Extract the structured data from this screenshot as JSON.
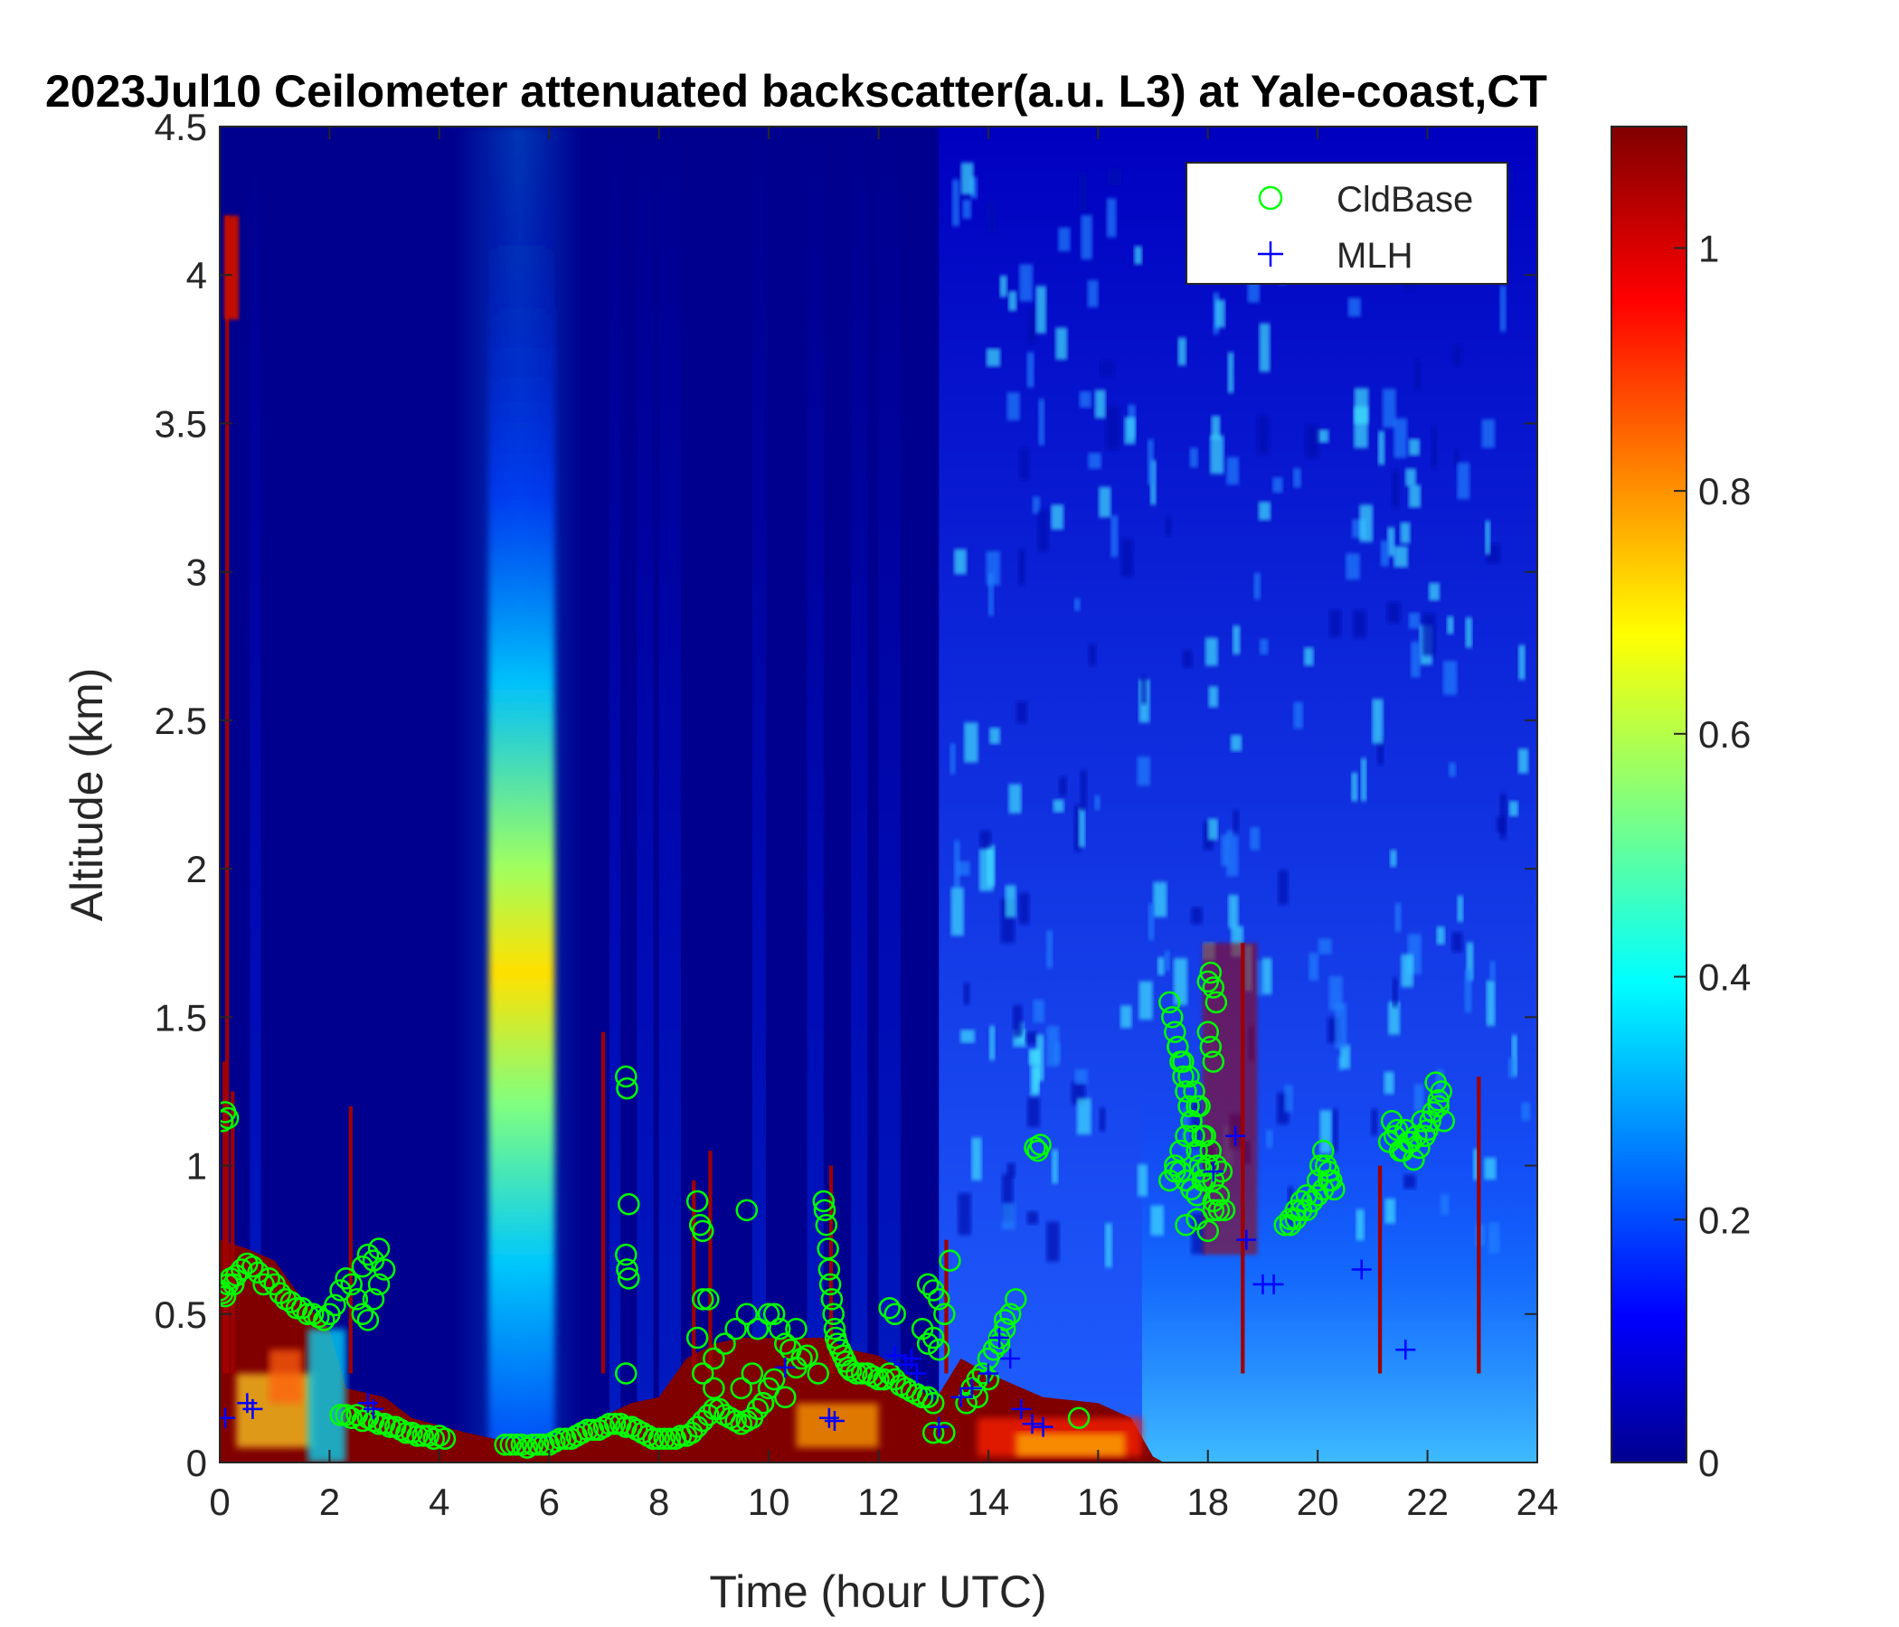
{
  "chart_data": {
    "type": "heatmap",
    "title": "2023Jul10 Ceilometer attenuated backscatter(a.u. L3) at Yale-coast,CT",
    "xlabel": "Time (hour UTC)",
    "ylabel": "Altitude (km)",
    "xlim": [
      0,
      24
    ],
    "ylim": [
      0,
      4.5
    ],
    "x_ticks": [
      0,
      2,
      4,
      6,
      8,
      10,
      12,
      14,
      16,
      18,
      20,
      22,
      24
    ],
    "x_tick_labels": [
      "0",
      "2",
      "4",
      "6",
      "8",
      "10",
      "12",
      "14",
      "16",
      "18",
      "20",
      "22",
      "24"
    ],
    "y_ticks": [
      0,
      0.5,
      1,
      1.5,
      2,
      2.5,
      3,
      3.5,
      4,
      4.5
    ],
    "y_tick_labels": [
      "0",
      "0.5",
      "1",
      "1.5",
      "2",
      "2.5",
      "3",
      "3.5",
      "4",
      "4.5"
    ],
    "colorbar": {
      "colormap": "jet",
      "clim": [
        0,
        1.1
      ],
      "ticks": [
        0,
        0.2,
        0.4,
        0.6,
        0.8,
        1
      ],
      "tick_labels": [
        "0",
        "0.2",
        "0.4",
        "0.6",
        "0.8",
        "1"
      ]
    },
    "legend": {
      "placement": "top-right",
      "entries": [
        {
          "name": "CldBase",
          "marker": "circle",
          "color": "#00ff00"
        },
        {
          "name": "MLH",
          "marker": "plus",
          "color": "#0000ff"
        }
      ]
    },
    "series": [
      {
        "name": "CldBase",
        "x": [
          0.0,
          0.05,
          0.1,
          0.15,
          0.2,
          0.25,
          0.3,
          0.4,
          0.5,
          0.6,
          0.7,
          0.8,
          0.9,
          1.0,
          1.1,
          1.2,
          1.3,
          1.4,
          1.5,
          1.6,
          1.7,
          1.8,
          1.9,
          2.0,
          2.1,
          2.2,
          2.3,
          2.4,
          2.5,
          2.6,
          2.7,
          2.8,
          2.9,
          3.0,
          2.6,
          2.7,
          2.8,
          2.9,
          0.05,
          0.1,
          0.15,
          2.2,
          2.3,
          2.4,
          2.5,
          2.6,
          2.7,
          2.8,
          2.9,
          3.0,
          3.1,
          3.2,
          3.3,
          3.4,
          3.5,
          3.6,
          3.7,
          3.8,
          3.9,
          4.0,
          4.1,
          5.2,
          5.3,
          5.4,
          5.5,
          5.6,
          5.7,
          5.8,
          5.9,
          6.0,
          6.1,
          6.2,
          6.3,
          6.4,
          6.5,
          6.6,
          6.7,
          6.8,
          6.9,
          7.0,
          7.1,
          7.2,
          7.3,
          7.4,
          7.5,
          7.6,
          7.7,
          7.8,
          7.9,
          8.0,
          8.1,
          8.2,
          8.3,
          8.4,
          8.5,
          8.6,
          8.7,
          8.8,
          8.9,
          9.0,
          9.1,
          9.2,
          9.3,
          9.4,
          9.5,
          9.6,
          9.7,
          9.8,
          9.9,
          10.0,
          7.4,
          7.42,
          7.45,
          7.4,
          7.42,
          7.45,
          7.4,
          8.7,
          8.75,
          8.8,
          9.6,
          8.8,
          8.9,
          9.0,
          8.7,
          8.8,
          9.0,
          9.2,
          9.4,
          9.6,
          9.8,
          10.0,
          10.2,
          10.4,
          10.6,
          9.5,
          9.7,
          9.9,
          10.1,
          10.3,
          10.5,
          10.7,
          10.9,
          10.1,
          10.3,
          10.5,
          11.0,
          11.02,
          11.05,
          11.08,
          11.1,
          11.12,
          11.15,
          11.18,
          11.2,
          11.22,
          11.25,
          11.3,
          11.35,
          11.4,
          11.45,
          11.5,
          11.6,
          11.7,
          11.8,
          11.9,
          12.0,
          12.1,
          12.2,
          12.3,
          12.4,
          12.5,
          12.6,
          12.7,
          12.8,
          12.9,
          13.0,
          12.2,
          12.3,
          12.9,
          13.0,
          13.1,
          13.2,
          13.3,
          12.8,
          12.9,
          13.0,
          13.1,
          13.0,
          13.2,
          13.6,
          13.7,
          13.8,
          13.9,
          14.0,
          14.1,
          14.2,
          14.3,
          14.4,
          14.5,
          13.8,
          14.0,
          14.2,
          14.3,
          14.85,
          14.9,
          14.95,
          15.65,
          17.3,
          17.35,
          17.4,
          17.45,
          17.5,
          17.55,
          17.6,
          17.65,
          17.7,
          17.75,
          17.8,
          17.85,
          17.9,
          17.95,
          18.0,
          18.05,
          18.1,
          18.15,
          17.4,
          17.5,
          17.6,
          17.7,
          17.8,
          17.9,
          18.0,
          18.1,
          18.2,
          17.3,
          17.4,
          17.5,
          17.6,
          17.7,
          17.8,
          17.9,
          18.0,
          18.1,
          18.2,
          18.3,
          17.45,
          17.55,
          17.65,
          17.75,
          17.85,
          17.95,
          18.05,
          18.15,
          18.25,
          17.6,
          17.8,
          18.0,
          18.1,
          18.0,
          18.05,
          18.1,
          19.4,
          19.5,
          19.6,
          19.7,
          19.8,
          19.9,
          20.0,
          20.05,
          20.1,
          20.15,
          20.2,
          20.25,
          20.3,
          19.6,
          19.8,
          20.0,
          20.2,
          19.5,
          19.7,
          19.9,
          20.1,
          21.3,
          21.4,
          21.5,
          21.6,
          21.7,
          21.8,
          21.9,
          22.0,
          22.1,
          22.2,
          22.3,
          21.35,
          21.55,
          21.75,
          21.95,
          22.15,
          22.25,
          21.45,
          21.65,
          21.85,
          22.05,
          22.2
        ],
        "y": [
          0.58,
          0.57,
          0.56,
          0.6,
          0.62,
          0.6,
          0.63,
          0.65,
          0.67,
          0.66,
          0.64,
          0.6,
          0.62,
          0.6,
          0.57,
          0.55,
          0.54,
          0.52,
          0.52,
          0.5,
          0.5,
          0.49,
          0.48,
          0.5,
          0.53,
          0.58,
          0.62,
          0.6,
          0.55,
          0.5,
          0.48,
          0.55,
          0.6,
          0.65,
          0.66,
          0.7,
          0.68,
          0.72,
          1.15,
          1.18,
          1.16,
          0.16,
          0.16,
          0.15,
          0.16,
          0.14,
          0.15,
          0.14,
          0.13,
          0.13,
          0.12,
          0.12,
          0.11,
          0.1,
          0.1,
          0.09,
          0.09,
          0.09,
          0.08,
          0.09,
          0.08,
          0.06,
          0.06,
          0.06,
          0.06,
          0.05,
          0.06,
          0.06,
          0.06,
          0.06,
          0.07,
          0.08,
          0.08,
          0.08,
          0.09,
          0.1,
          0.11,
          0.11,
          0.11,
          0.12,
          0.13,
          0.13,
          0.13,
          0.12,
          0.12,
          0.11,
          0.1,
          0.09,
          0.08,
          0.08,
          0.08,
          0.08,
          0.08,
          0.09,
          0.09,
          0.1,
          0.12,
          0.14,
          0.16,
          0.18,
          0.18,
          0.16,
          0.15,
          0.14,
          0.13,
          0.14,
          0.15,
          0.18,
          0.2,
          0.25,
          1.3,
          1.26,
          0.87,
          0.7,
          0.65,
          0.62,
          0.3,
          0.88,
          0.8,
          0.78,
          0.85,
          0.55,
          0.55,
          0.35,
          0.42,
          0.3,
          0.25,
          0.4,
          0.45,
          0.5,
          0.45,
          0.5,
          0.45,
          0.38,
          0.35,
          0.25,
          0.3,
          0.2,
          0.28,
          0.22,
          0.32,
          0.36,
          0.3,
          0.5,
          0.4,
          0.45,
          0.88,
          0.85,
          0.8,
          0.72,
          0.65,
          0.6,
          0.55,
          0.5,
          0.45,
          0.42,
          0.4,
          0.38,
          0.36,
          0.34,
          0.32,
          0.31,
          0.3,
          0.3,
          0.3,
          0.29,
          0.28,
          0.28,
          0.3,
          0.28,
          0.26,
          0.25,
          0.24,
          0.23,
          0.22,
          0.22,
          0.2,
          0.52,
          0.5,
          0.6,
          0.58,
          0.55,
          0.5,
          0.68,
          0.45,
          0.4,
          0.42,
          0.38,
          0.1,
          0.1,
          0.2,
          0.25,
          0.28,
          0.3,
          0.35,
          0.38,
          0.4,
          0.45,
          0.5,
          0.55,
          0.22,
          0.28,
          0.42,
          0.48,
          1.06,
          1.05,
          1.07,
          0.15,
          1.55,
          1.5,
          1.45,
          1.4,
          1.35,
          1.3,
          1.25,
          1.2,
          1.15,
          1.1,
          1.05,
          1.0,
          0.98,
          0.95,
          1.62,
          1.65,
          1.6,
          1.55,
          1.0,
          0.98,
          0.95,
          0.92,
          0.9,
          0.95,
          1.0,
          0.88,
          0.85,
          0.95,
          0.98,
          1.05,
          1.1,
          1.15,
          1.2,
          1.1,
          1.0,
          0.95,
          0.9,
          0.85,
          1.4,
          1.35,
          1.3,
          1.25,
          1.2,
          1.1,
          1.05,
          1.0,
          0.98,
          0.8,
          0.82,
          0.78,
          0.85,
          1.45,
          1.4,
          1.35,
          0.8,
          0.82,
          0.85,
          0.88,
          0.9,
          0.88,
          0.95,
          1.0,
          1.05,
          1.0,
          0.98,
          0.95,
          0.92,
          0.82,
          0.85,
          0.9,
          0.95,
          0.8,
          0.85,
          0.88,
          0.92,
          1.08,
          1.1,
          1.05,
          1.12,
          1.08,
          1.1,
          1.15,
          1.12,
          1.18,
          1.2,
          1.15,
          1.15,
          1.05,
          1.02,
          1.1,
          1.28,
          1.25,
          1.12,
          1.08,
          1.06,
          1.15,
          1.22
        ]
      },
      {
        "name": "MLH",
        "x": [
          0.1,
          0.5,
          0.6,
          2.7,
          2.8,
          10.3,
          11.1,
          11.2,
          12.3,
          12.5,
          12.6,
          12.7,
          13.1,
          13.5,
          13.7,
          14.0,
          14.2,
          14.4,
          14.6,
          14.8,
          15.0,
          18.1,
          18.5,
          18.7,
          19.0,
          19.2,
          20.8,
          21.6
        ],
        "y": [
          0.15,
          0.2,
          0.18,
          0.2,
          0.18,
          0.32,
          0.15,
          0.14,
          0.36,
          0.33,
          0.35,
          0.3,
          0.12,
          0.22,
          0.25,
          0.3,
          0.42,
          0.35,
          0.18,
          0.13,
          0.12,
          0.98,
          1.1,
          0.75,
          0.6,
          0.6,
          0.65,
          0.38
        ]
      }
    ]
  }
}
